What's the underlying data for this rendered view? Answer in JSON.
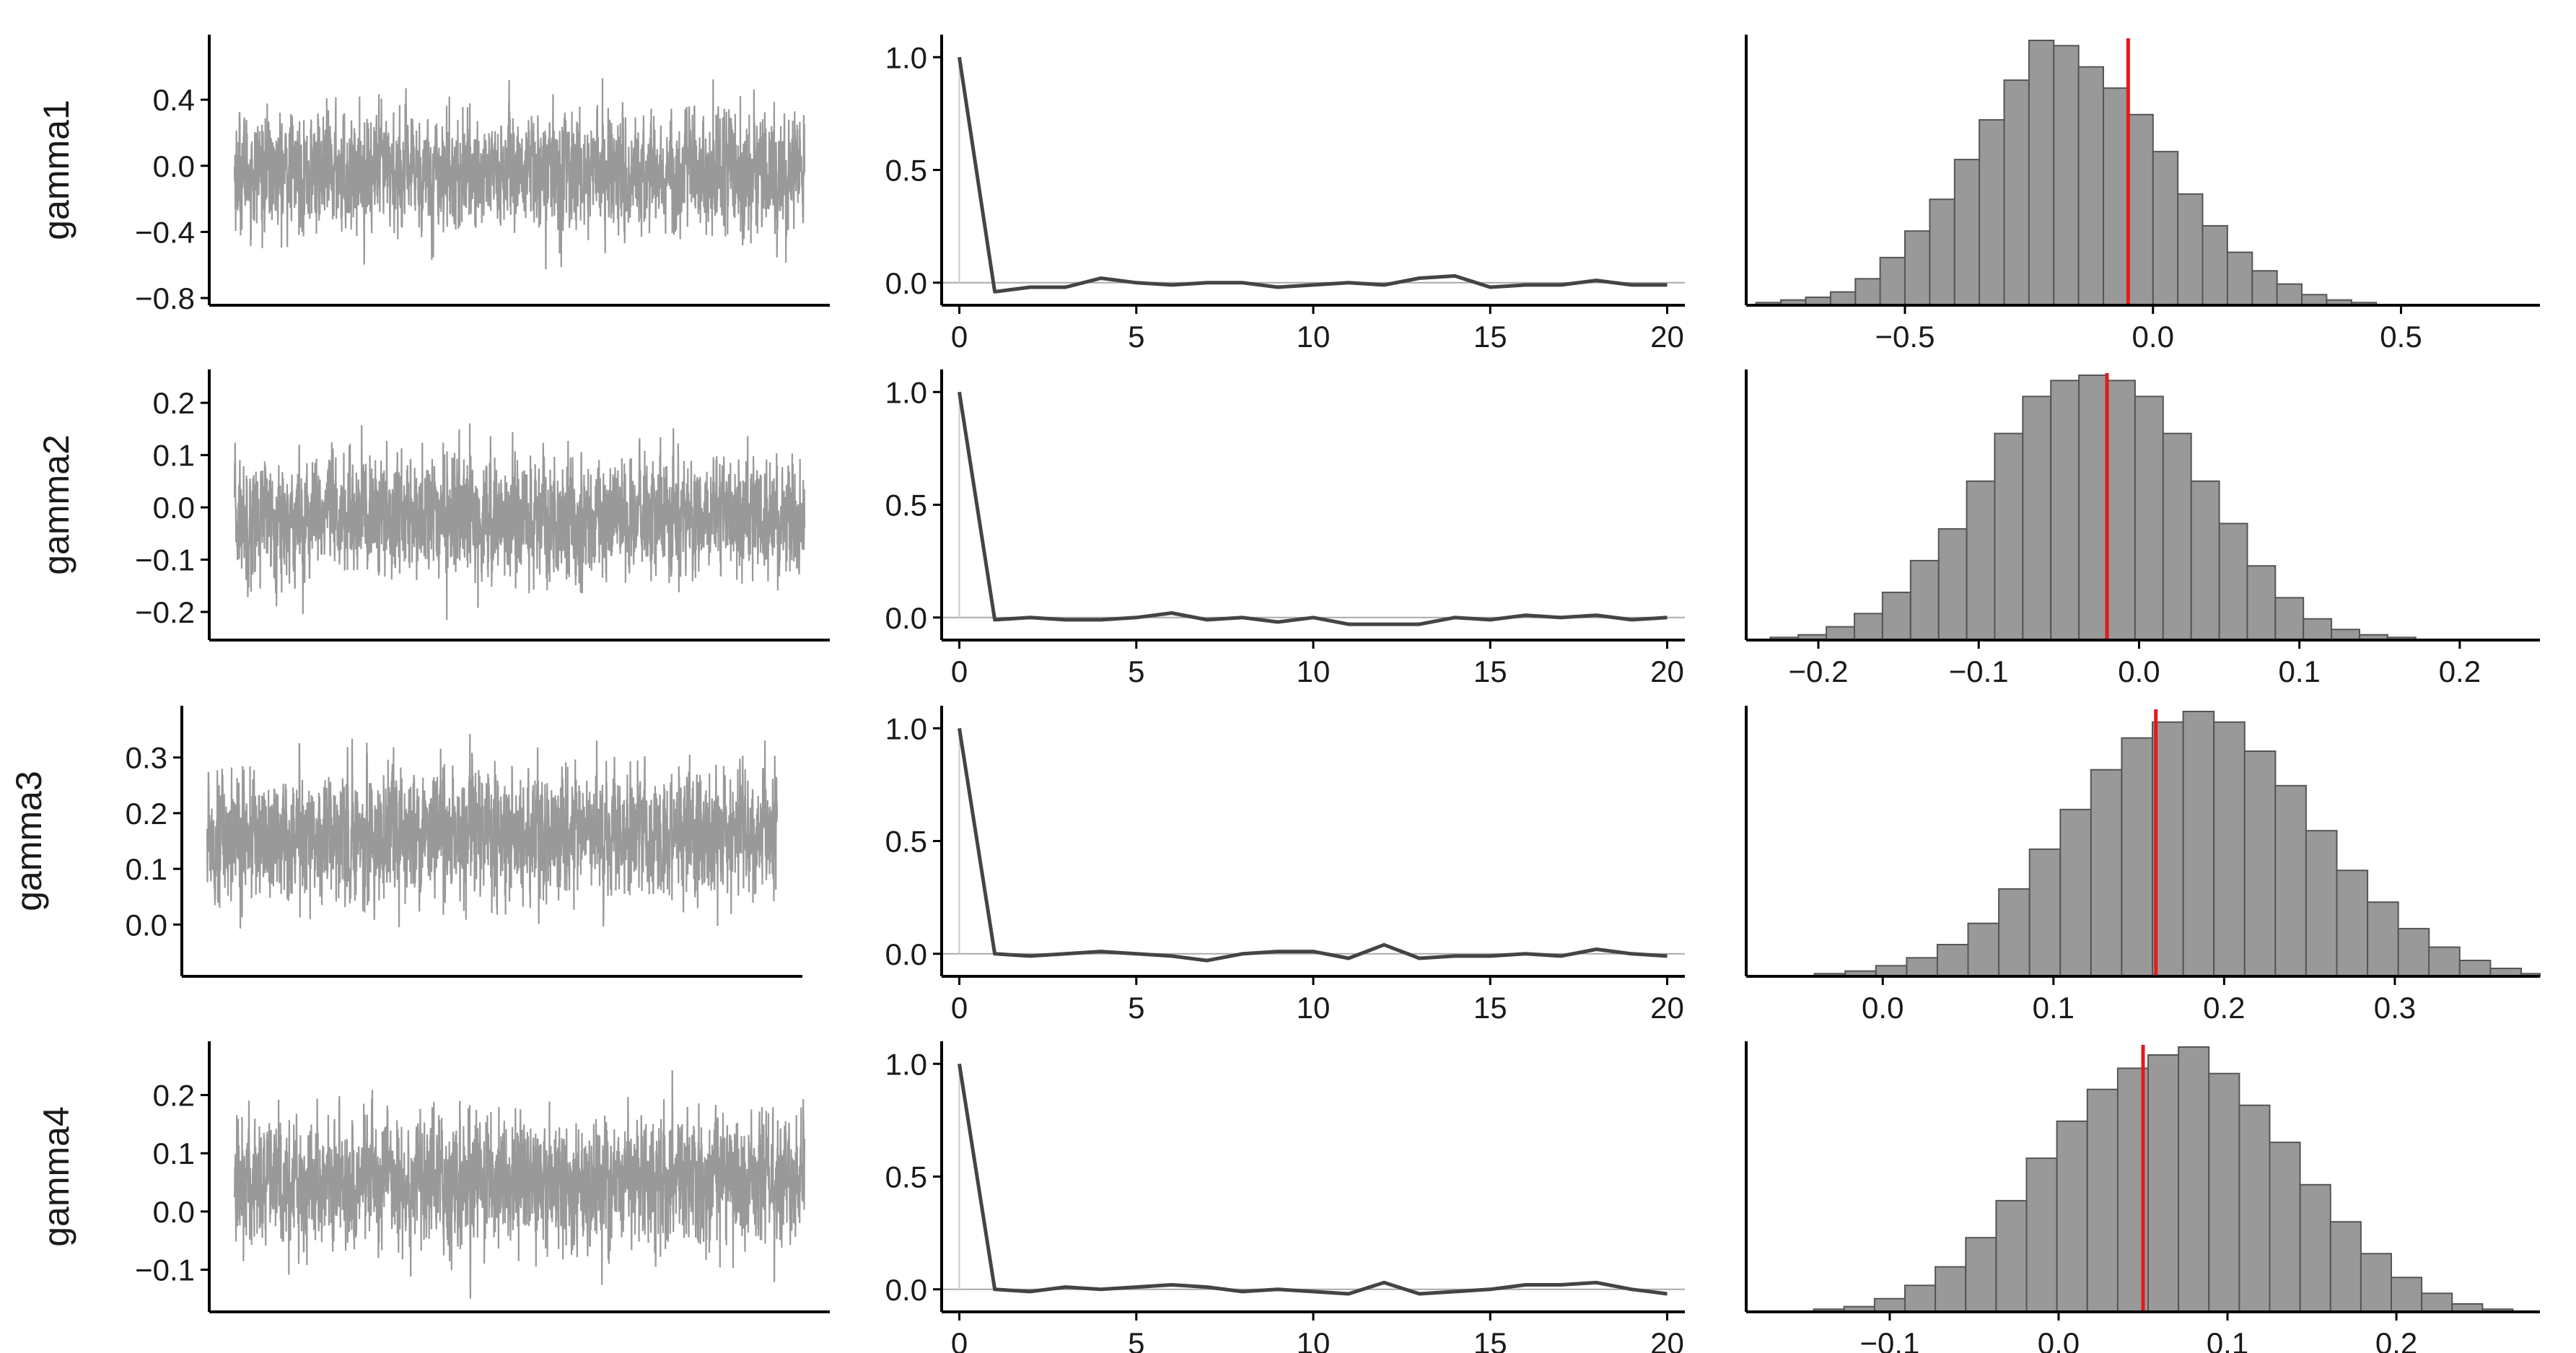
{
  "colors": {
    "trace": "#999999",
    "acf_line": "#444444",
    "acf_ref": "#aaaaaa",
    "hist_fill": "#999999",
    "hist_edge": "#555555",
    "mean_line": "#e41a1c",
    "axis": "#000000"
  },
  "chart_data": [
    {
      "type": "line",
      "name": "gamma1",
      "row_label": "gamma1",
      "trace": {
        "ylim": [
          -0.8,
          0.75
        ],
        "yticks": [
          -0.8,
          -0.4,
          0.0,
          0.4
        ],
        "ytick_labels": [
          "−0.8",
          "−0.4",
          "0.0",
          "0.4"
        ],
        "center": -0.04,
        "sd": 0.17,
        "min": -0.76,
        "max": 0.7
      },
      "acf": {
        "xlim": [
          -0.5,
          20.5
        ],
        "ylim": [
          -0.1,
          1.1
        ],
        "xticks": [
          0,
          5,
          10,
          15,
          20
        ],
        "xtick_labels": [
          "0",
          "5",
          "10",
          "15",
          "20"
        ],
        "yticks": [
          0.0,
          0.5,
          1.0
        ],
        "ytick_labels": [
          "0.0",
          "0.5",
          "1.0"
        ],
        "lags": [
          0,
          1,
          2,
          3,
          4,
          5,
          6,
          7,
          8,
          9,
          10,
          11,
          12,
          13,
          14,
          15,
          16,
          17,
          18,
          19,
          20
        ],
        "values": [
          1.0,
          -0.04,
          -0.02,
          -0.02,
          0.02,
          0.0,
          -0.01,
          0.0,
          0.0,
          -0.02,
          -0.01,
          0.0,
          -0.01,
          0.02,
          0.03,
          -0.02,
          -0.01,
          -0.01,
          0.01,
          -0.01,
          -0.01
        ]
      },
      "histogram": {
        "xlim": [
          -0.82,
          0.78
        ],
        "xticks": [
          -0.5,
          0.0,
          0.5
        ],
        "xtick_labels": [
          "−0.5",
          "0.0",
          "0.5"
        ],
        "bin_start": -0.9,
        "bin_width": 0.05,
        "counts": [
          0,
          0,
          1,
          2,
          3,
          5,
          10,
          18,
          28,
          40,
          55,
          70,
          85,
          100,
          98,
          90,
          82,
          72,
          58,
          42,
          30,
          20,
          13,
          8,
          4,
          2,
          1
        ],
        "mean": -0.05
      }
    },
    {
      "type": "line",
      "name": "gamma2",
      "row_label": "gamma2",
      "trace": {
        "ylim": [
          -0.24,
          0.25
        ],
        "yticks": [
          -0.2,
          -0.1,
          0.0,
          0.1,
          0.2
        ],
        "ytick_labels": [
          "−0.2",
          "−0.1",
          "0.0",
          "0.1",
          "0.2"
        ],
        "center": -0.02,
        "sd": 0.055,
        "min": -0.22,
        "max": 0.23
      },
      "acf": {
        "xlim": [
          -0.5,
          20.5
        ],
        "ylim": [
          -0.1,
          1.1
        ],
        "xticks": [
          0,
          5,
          10,
          15,
          20
        ],
        "xtick_labels": [
          "0",
          "5",
          "10",
          "15",
          "20"
        ],
        "yticks": [
          0.0,
          0.5,
          1.0
        ],
        "ytick_labels": [
          "0.0",
          "0.5",
          "1.0"
        ],
        "lags": [
          0,
          1,
          2,
          3,
          4,
          5,
          6,
          7,
          8,
          9,
          10,
          11,
          12,
          13,
          14,
          15,
          16,
          17,
          18,
          19,
          20
        ],
        "values": [
          1.0,
          -0.01,
          0.0,
          -0.01,
          -0.01,
          0.0,
          0.02,
          -0.01,
          0.0,
          -0.02,
          0.0,
          -0.03,
          -0.03,
          -0.03,
          0.0,
          -0.01,
          0.01,
          0.0,
          0.01,
          -0.01,
          0.0
        ]
      },
      "histogram": {
        "xlim": [
          -0.245,
          0.25
        ],
        "xticks": [
          -0.2,
          -0.1,
          0.0,
          0.1,
          0.2
        ],
        "xtick_labels": [
          "−0.2",
          "−0.1",
          "0.0",
          "0.1",
          "0.2"
        ],
        "bin_start": -0.23,
        "bin_width": 0.0175,
        "counts": [
          1,
          2,
          5,
          10,
          18,
          30,
          42,
          60,
          78,
          92,
          98,
          100,
          98,
          92,
          78,
          60,
          44,
          28,
          16,
          8,
          4,
          2,
          1
        ],
        "mean": -0.02
      }
    },
    {
      "type": "line",
      "name": "gamma3",
      "row_label": "gamma3",
      "trace": {
        "ylim": [
          -0.08,
          0.38
        ],
        "yticks": [
          0.0,
          0.1,
          0.2,
          0.3
        ],
        "ytick_labels": [
          "0.0",
          "0.1",
          "0.2",
          "0.3"
        ],
        "center": 0.16,
        "sd": 0.055,
        "min": -0.06,
        "max": 0.36
      },
      "acf": {
        "xlim": [
          -0.5,
          20.5
        ],
        "ylim": [
          -0.1,
          1.1
        ],
        "xticks": [
          0,
          5,
          10,
          15,
          20
        ],
        "xtick_labels": [
          "0",
          "5",
          "10",
          "15",
          "20"
        ],
        "yticks": [
          0.0,
          0.5,
          1.0
        ],
        "ytick_labels": [
          "0.0",
          "0.5",
          "1.0"
        ],
        "lags": [
          0,
          1,
          2,
          3,
          4,
          5,
          6,
          7,
          8,
          9,
          10,
          11,
          12,
          13,
          14,
          15,
          16,
          17,
          18,
          19,
          20
        ],
        "values": [
          1.0,
          0.0,
          -0.01,
          0.0,
          0.01,
          0.0,
          -0.01,
          -0.03,
          0.0,
          0.01,
          0.01,
          -0.02,
          0.04,
          -0.02,
          -0.01,
          -0.01,
          0.0,
          -0.01,
          0.02,
          0.0,
          -0.01
        ]
      },
      "histogram": {
        "xlim": [
          -0.08,
          0.385
        ],
        "xticks": [
          0.0,
          0.1,
          0.2,
          0.3
        ],
        "xtick_labels": [
          "0.0",
          "0.1",
          "0.2",
          "0.3"
        ],
        "bin_start": -0.04,
        "bin_width": 0.018,
        "counts": [
          1,
          2,
          4,
          7,
          12,
          20,
          33,
          48,
          63,
          78,
          90,
          96,
          100,
          96,
          85,
          72,
          55,
          40,
          28,
          18,
          11,
          6,
          3,
          1
        ],
        "mean": 0.16
      }
    },
    {
      "type": "line",
      "name": "gamma4",
      "row_label": "gamma4",
      "trace": {
        "ylim": [
          -0.16,
          0.28
        ],
        "yticks": [
          -0.1,
          0.0,
          0.1,
          0.2
        ],
        "ytick_labels": [
          "−0.1",
          "0.0",
          "0.1",
          "0.2"
        ],
        "center": 0.05,
        "sd": 0.055,
        "min": -0.15,
        "max": 0.26
      },
      "acf": {
        "xlim": [
          -0.5,
          20.5
        ],
        "ylim": [
          -0.1,
          1.1
        ],
        "xticks": [
          0,
          5,
          10,
          15,
          20
        ],
        "xtick_labels": [
          "0",
          "5",
          "10",
          "15",
          "20"
        ],
        "yticks": [
          0.0,
          0.5,
          1.0
        ],
        "ytick_labels": [
          "0.0",
          "0.5",
          "1.0"
        ],
        "lags": [
          0,
          1,
          2,
          3,
          4,
          5,
          6,
          7,
          8,
          9,
          10,
          11,
          12,
          13,
          14,
          15,
          16,
          17,
          18,
          19,
          20
        ],
        "values": [
          1.0,
          0.0,
          -0.01,
          0.01,
          0.0,
          0.01,
          0.02,
          0.01,
          -0.01,
          0.0,
          -0.01,
          -0.02,
          0.03,
          -0.02,
          -0.01,
          0.0,
          0.02,
          0.02,
          0.03,
          0.0,
          -0.02
        ]
      },
      "histogram": {
        "xlim": [
          -0.185,
          0.285
        ],
        "xticks": [
          -0.1,
          0.0,
          0.1,
          0.2
        ],
        "xtick_labels": [
          "−0.1",
          "0.0",
          "0.1",
          "0.2"
        ],
        "bin_start": -0.145,
        "bin_width": 0.018,
        "counts": [
          1,
          2,
          5,
          10,
          17,
          28,
          42,
          58,
          72,
          84,
          92,
          97,
          100,
          90,
          78,
          64,
          48,
          34,
          22,
          13,
          7,
          3,
          1
        ],
        "mean": 0.05
      }
    }
  ]
}
